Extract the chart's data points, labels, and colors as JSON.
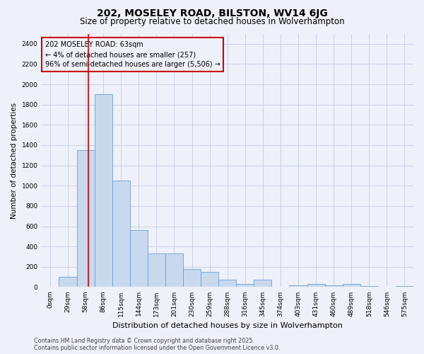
{
  "title": "202, MOSELEY ROAD, BILSTON, WV14 6JG",
  "subtitle": "Size of property relative to detached houses in Wolverhampton",
  "xlabel": "Distribution of detached houses by size in Wolverhampton",
  "ylabel": "Number of detached properties",
  "footer1": "Contains HM Land Registry data © Crown copyright and database right 2025.",
  "footer2": "Contains public sector information licensed under the Open Government Licence v3.0.",
  "annotation_title": "202 MOSELEY ROAD: 63sqm",
  "annotation_line1": "← 4% of detached houses are smaller (257)",
  "annotation_line2": "96% of semi-detached houses are larger (5,506) →",
  "bar_color": "#c9d9ed",
  "bar_edge_color": "#6a9fd8",
  "vline_color": "#cc0000",
  "annotation_box_color": "#cc0000",
  "background_color": "#eef1fa",
  "grid_color": "#c8d0e8",
  "categories": [
    "0sqm",
    "29sqm",
    "58sqm",
    "86sqm",
    "115sqm",
    "144sqm",
    "173sqm",
    "201sqm",
    "230sqm",
    "259sqm",
    "288sqm",
    "316sqm",
    "345sqm",
    "374sqm",
    "403sqm",
    "431sqm",
    "460sqm",
    "489sqm",
    "518sqm",
    "546sqm",
    "575sqm"
  ],
  "values": [
    0,
    100,
    1350,
    1900,
    1050,
    560,
    330,
    330,
    175,
    150,
    70,
    30,
    70,
    0,
    15,
    30,
    15,
    30,
    10,
    0,
    10
  ],
  "ylim": [
    0,
    2500
  ],
  "yticks": [
    0,
    200,
    400,
    600,
    800,
    1000,
    1200,
    1400,
    1600,
    1800,
    2000,
    2200,
    2400
  ],
  "vline_x": 2.17,
  "title_fontsize": 10,
  "subtitle_fontsize": 8.5,
  "label_fontsize": 7.5,
  "tick_fontsize": 6.5,
  "footer_fontsize": 5.8,
  "annotation_fontsize": 7.0
}
